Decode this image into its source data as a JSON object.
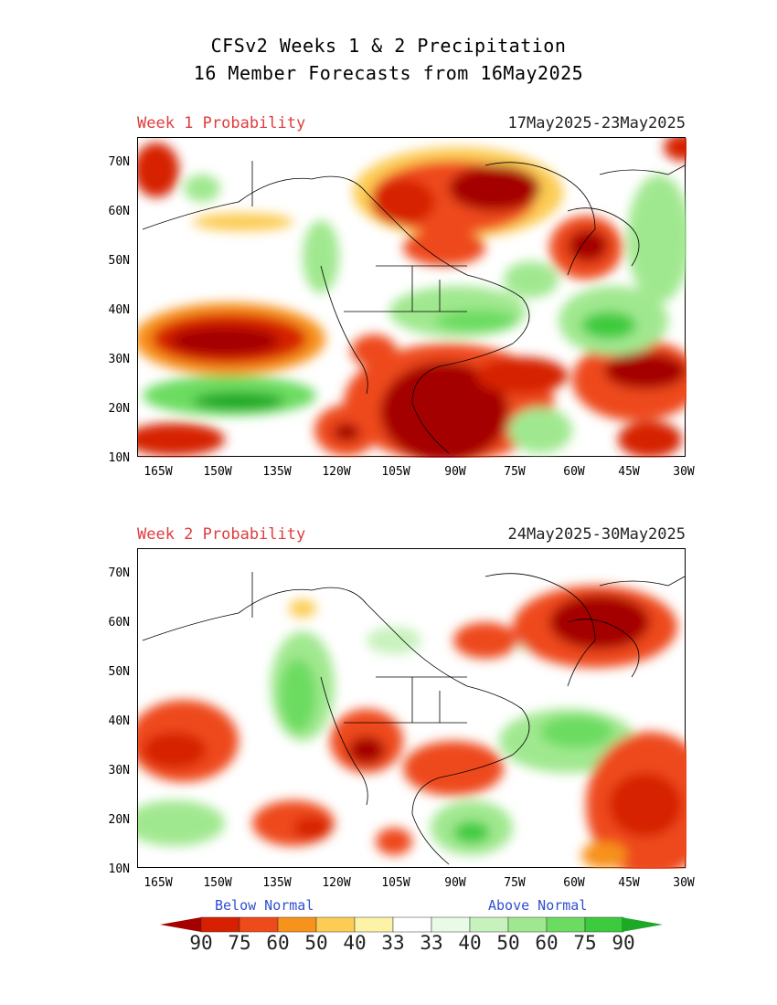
{
  "title_line1": "CFSv2 Weeks 1 & 2 Precipitation",
  "title_line2": "16 Member Forecasts from 16May2025",
  "panels": [
    {
      "week": "Week 1 Probability",
      "dates": "17May2025-23May2025"
    },
    {
      "week": "Week 2 Probability",
      "dates": "24May2025-30May2025"
    }
  ],
  "lat_labels": [
    "70N",
    "60N",
    "50N",
    "40N",
    "30N",
    "20N",
    "10N"
  ],
  "lon_labels": [
    "165W",
    "150W",
    "135W",
    "120W",
    "105W",
    "90W",
    "75W",
    "60W",
    "45W",
    "30W"
  ],
  "legend": {
    "below": "Below Normal",
    "above": "Above Normal",
    "numbers": [
      "90",
      "75",
      "60",
      "50",
      "40",
      "33",
      "33",
      "40",
      "50",
      "60",
      "75",
      "90"
    ],
    "below_colors": [
      "#a50000",
      "#d62000",
      "#ee4a1a",
      "#f7921d",
      "#fccc55",
      "#fdf3a6"
    ],
    "above_colors": [
      "#e9fbe6",
      "#c8f2bd",
      "#a0e88f",
      "#6cdc60",
      "#3ccb3c",
      "#1ea828"
    ],
    "arrow_dry": "#a50000",
    "arrow_wet": "#1ea828"
  }
}
